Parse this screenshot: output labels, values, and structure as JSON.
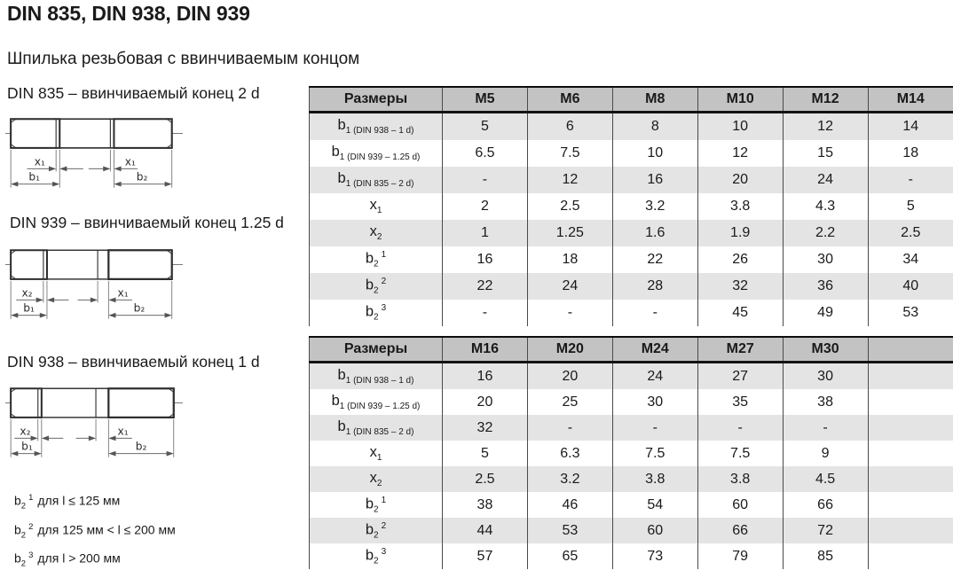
{
  "page": {
    "title": "DIN 835, DIN 938, DIN 939",
    "subtitle": "Шпилька резьбовая с ввинчиваемым концом"
  },
  "colors": {
    "header_bg": "#c3c3c3",
    "row_shade": "#e4e4e4",
    "table_line": "#4a4a4a"
  },
  "drawings": [
    {
      "caption": "DIN 835 – ввинчиваемый конец 2 d",
      "labels": {
        "left_x": "x₁",
        "right_x": "x₁",
        "b1": "b₁",
        "b2": "b₂"
      }
    },
    {
      "caption": "DIN 939 – ввинчиваемый конец 1.25 d",
      "labels": {
        "left_x": "x₂",
        "right_x": "x₁",
        "b1": "b₁",
        "b2": "b₂"
      }
    },
    {
      "caption": "DIN 938 – ввинчиваемый конец 1 d",
      "labels": {
        "left_x": "x₂",
        "right_x": "x₁",
        "b1": "b₁",
        "b2": "b₂"
      }
    }
  ],
  "footnotes": [
    {
      "main": "b",
      "sub": "2",
      "sup": "1",
      "text": "для l ≤ 125 мм"
    },
    {
      "main": "b",
      "sub": "2",
      "sup": "2",
      "text": "для 125 мм < l ≤ 200 мм"
    },
    {
      "main": "b",
      "sub": "2",
      "sup": "3",
      "text": "для l > 200 мм"
    }
  ],
  "tables": [
    {
      "header": [
        "Размеры",
        "M5",
        "M6",
        "M8",
        "M10",
        "M12",
        "M14"
      ],
      "rows": [
        {
          "label": {
            "main": "b",
            "sub": "1 (DIN 938 – 1 d)",
            "sup": ""
          },
          "values": [
            "5",
            "6",
            "8",
            "10",
            "12",
            "14"
          ]
        },
        {
          "label": {
            "main": "b",
            "sub": "1 (DIN 939 – 1.25 d)",
            "sup": ""
          },
          "values": [
            "6.5",
            "7.5",
            "10",
            "12",
            "15",
            "18"
          ]
        },
        {
          "label": {
            "main": "b",
            "sub": "1 (DIN 835 – 2 d)",
            "sup": ""
          },
          "values": [
            "-",
            "12",
            "16",
            "20",
            "24",
            "-"
          ]
        },
        {
          "label": {
            "main": "x",
            "sub": "1",
            "sup": ""
          },
          "values": [
            "2",
            "2.5",
            "3.2",
            "3.8",
            "4.3",
            "5"
          ]
        },
        {
          "label": {
            "main": "x",
            "sub": "2",
            "sup": ""
          },
          "values": [
            "1",
            "1.25",
            "1.6",
            "1.9",
            "2.2",
            "2.5"
          ]
        },
        {
          "label": {
            "main": "b",
            "sub": "2",
            "sup": "1"
          },
          "values": [
            "16",
            "18",
            "22",
            "26",
            "30",
            "34"
          ]
        },
        {
          "label": {
            "main": "b",
            "sub": "2",
            "sup": "2"
          },
          "values": [
            "22",
            "24",
            "28",
            "32",
            "36",
            "40"
          ]
        },
        {
          "label": {
            "main": "b",
            "sub": "2",
            "sup": "3"
          },
          "values": [
            "-",
            "-",
            "-",
            "45",
            "49",
            "53"
          ]
        }
      ]
    },
    {
      "header": [
        "Размеры",
        "M16",
        "M20",
        "M24",
        "M27",
        "M30",
        ""
      ],
      "rows": [
        {
          "label": {
            "main": "b",
            "sub": "1 (DIN 938 – 1 d)",
            "sup": ""
          },
          "values": [
            "16",
            "20",
            "24",
            "27",
            "30",
            ""
          ]
        },
        {
          "label": {
            "main": "b",
            "sub": "1 (DIN 939 – 1.25 d)",
            "sup": ""
          },
          "values": [
            "20",
            "25",
            "30",
            "35",
            "38",
            ""
          ]
        },
        {
          "label": {
            "main": "b",
            "sub": "1 (DIN 835 – 2 d)",
            "sup": ""
          },
          "values": [
            "32",
            "-",
            "-",
            "-",
            "-",
            ""
          ]
        },
        {
          "label": {
            "main": "x",
            "sub": "1",
            "sup": ""
          },
          "values": [
            "5",
            "6.3",
            "7.5",
            "7.5",
            "9",
            ""
          ]
        },
        {
          "label": {
            "main": "x",
            "sub": "2",
            "sup": ""
          },
          "values": [
            "2.5",
            "3.2",
            "3.8",
            "3.8",
            "4.5",
            ""
          ]
        },
        {
          "label": {
            "main": "b",
            "sub": "2",
            "sup": "1"
          },
          "values": [
            "38",
            "46",
            "54",
            "60",
            "66",
            ""
          ]
        },
        {
          "label": {
            "main": "b",
            "sub": "2",
            "sup": "2"
          },
          "values": [
            "44",
            "53",
            "60",
            "66",
            "72",
            ""
          ]
        },
        {
          "label": {
            "main": "b",
            "sub": "2",
            "sup": "3"
          },
          "values": [
            "57",
            "65",
            "73",
            "79",
            "85",
            ""
          ]
        }
      ]
    }
  ]
}
